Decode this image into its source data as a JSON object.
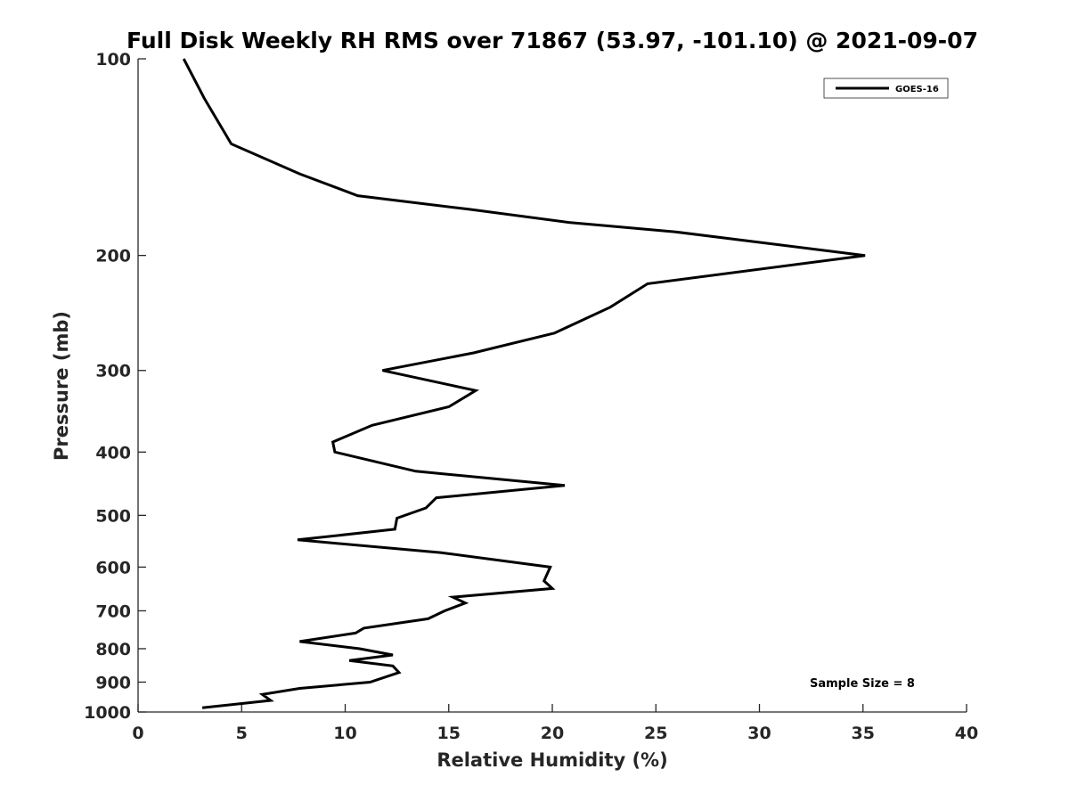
{
  "chart_data": {
    "type": "line",
    "title": "Full Disk Weekly RH RMS over 71867 (53.97, -101.10) @ 2021-09-07",
    "xlabel": "Relative Humidity (%)",
    "ylabel": "Pressure (mb)",
    "xlim": [
      0,
      40
    ],
    "ylim": [
      100,
      1000
    ],
    "y_scale": "log",
    "y_reversed": true,
    "grid": false,
    "legend_position": "top-right",
    "x_ticks": [
      "0",
      "5",
      "10",
      "15",
      "20",
      "25",
      "30",
      "35",
      "40"
    ],
    "y_ticks": [
      "100",
      "200",
      "300",
      "400",
      "500",
      "600",
      "700",
      "800",
      "900",
      "1000"
    ],
    "series": [
      {
        "name": "GOES-16",
        "color": "#000000",
        "points": [
          [
            2.2,
            100
          ],
          [
            3.2,
            115
          ],
          [
            4.5,
            135
          ],
          [
            7.8,
            150
          ],
          [
            10.6,
            162
          ],
          [
            16.0,
            170
          ],
          [
            20.8,
            178
          ],
          [
            25.9,
            184
          ],
          [
            35.1,
            200
          ],
          [
            24.6,
            221
          ],
          [
            22.8,
            240
          ],
          [
            20.1,
            263
          ],
          [
            16.2,
            282
          ],
          [
            11.8,
            300
          ],
          [
            16.3,
            322
          ],
          [
            15.0,
            341
          ],
          [
            11.3,
            364
          ],
          [
            9.4,
            386
          ],
          [
            9.5,
            400
          ],
          [
            13.4,
            428
          ],
          [
            20.6,
            450
          ],
          [
            14.4,
            470
          ],
          [
            13.9,
            487
          ],
          [
            12.5,
            505
          ],
          [
            12.4,
            525
          ],
          [
            7.7,
            545
          ],
          [
            14.6,
            570
          ],
          [
            19.9,
            600
          ],
          [
            19.6,
            630
          ],
          [
            20.0,
            647
          ],
          [
            15.2,
            667
          ],
          [
            15.8,
            681
          ],
          [
            14.8,
            700
          ],
          [
            14.0,
            720
          ],
          [
            10.9,
            744
          ],
          [
            10.5,
            757
          ],
          [
            7.8,
            780
          ],
          [
            10.7,
            800
          ],
          [
            12.3,
            818
          ],
          [
            10.2,
            834
          ],
          [
            12.3,
            850
          ],
          [
            12.6,
            870
          ],
          [
            11.2,
            900
          ],
          [
            7.8,
            920
          ],
          [
            6.0,
            940
          ],
          [
            6.4,
            960
          ],
          [
            3.1,
            985
          ]
        ]
      }
    ]
  },
  "annotation": {
    "sample_size": "Sample Size = 8"
  }
}
